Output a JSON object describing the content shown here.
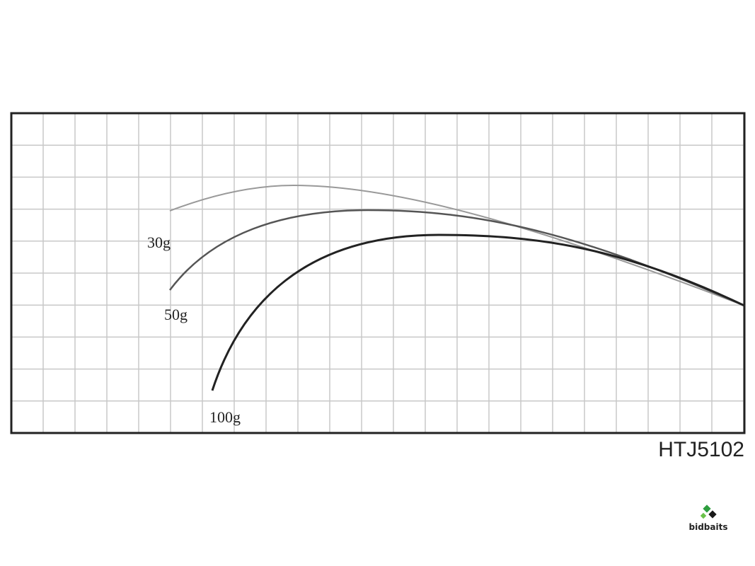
{
  "curves": [
    {
      "label": "30g"
    },
    {
      "label": "50g"
    },
    {
      "label": "100g"
    }
  ],
  "model": "HTJ5102",
  "watermark": "bidbaits"
}
